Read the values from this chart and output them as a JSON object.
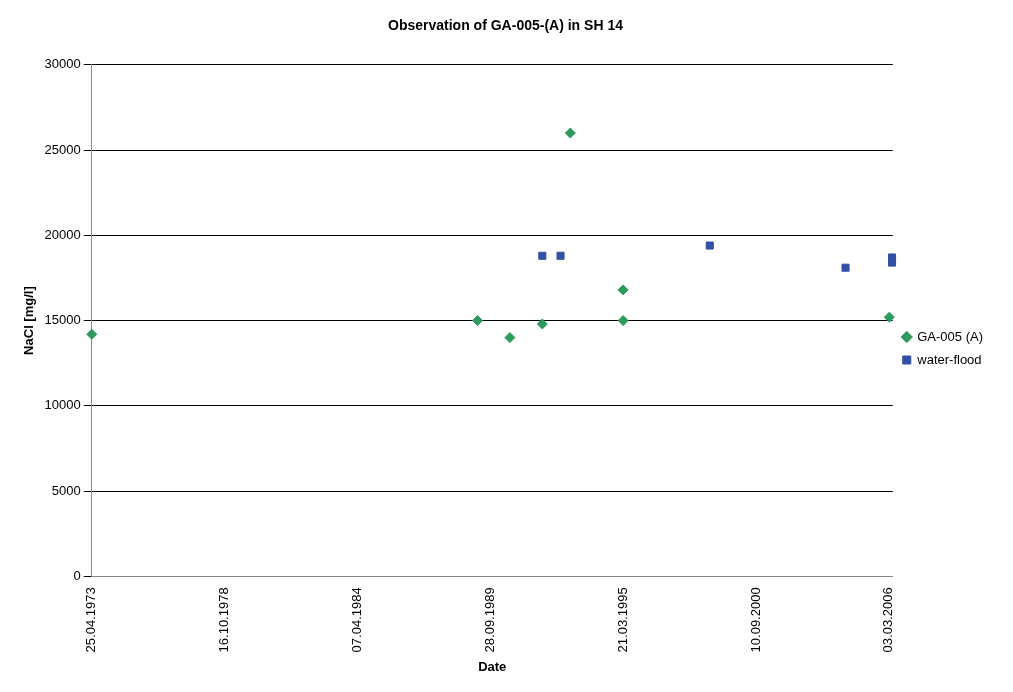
{
  "chart_data": {
    "type": "scatter",
    "title": "Observation of GA-005-(A) in SH 14",
    "xlabel": "Date",
    "ylabel": "NaCl [mg/l]",
    "series": [
      {
        "name": "GA-005 (A)",
        "color": "#2e9a5e",
        "marker": "diamond",
        "x": [
          "1973-04-25",
          "1989-03-20",
          "1990-07-20",
          "1991-11-20",
          "1993-01-15",
          "1995-03-21",
          "1995-03-21",
          "2006-03-10"
        ],
        "values": [
          14200,
          15000,
          14000,
          14800,
          26000,
          16800,
          15000,
          15200
        ]
      },
      {
        "name": "water-flood",
        "color": "#3450a4",
        "marker": "square",
        "x": [
          "1991-11-20",
          "1992-08-20",
          "1998-10-15",
          "2004-05-20",
          "2006-04-20",
          "2006-04-20"
        ],
        "values": [
          18800,
          18800,
          19400,
          18100,
          18700,
          18400
        ]
      }
    ],
    "xlim": [
      "1973-04-25",
      "2006-05-01"
    ],
    "xticks": [
      {
        "value": "1973-04-25",
        "label": "25.04.1973"
      },
      {
        "value": "1978-10-16",
        "label": "16.10.1978"
      },
      {
        "value": "1984-04-07",
        "label": "07.04.1984"
      },
      {
        "value": "1989-09-28",
        "label": "28.09.1989"
      },
      {
        "value": "1995-03-21",
        "label": "21.03.1995"
      },
      {
        "value": "2000-09-10",
        "label": "10.09.2000"
      },
      {
        "value": "2006-03-03",
        "label": "03.03.2006"
      }
    ],
    "ylim": [
      0,
      30000
    ],
    "yticks": [
      0,
      5000,
      10000,
      15000,
      20000,
      25000,
      30000
    ],
    "grid": "y",
    "legend": "right"
  }
}
